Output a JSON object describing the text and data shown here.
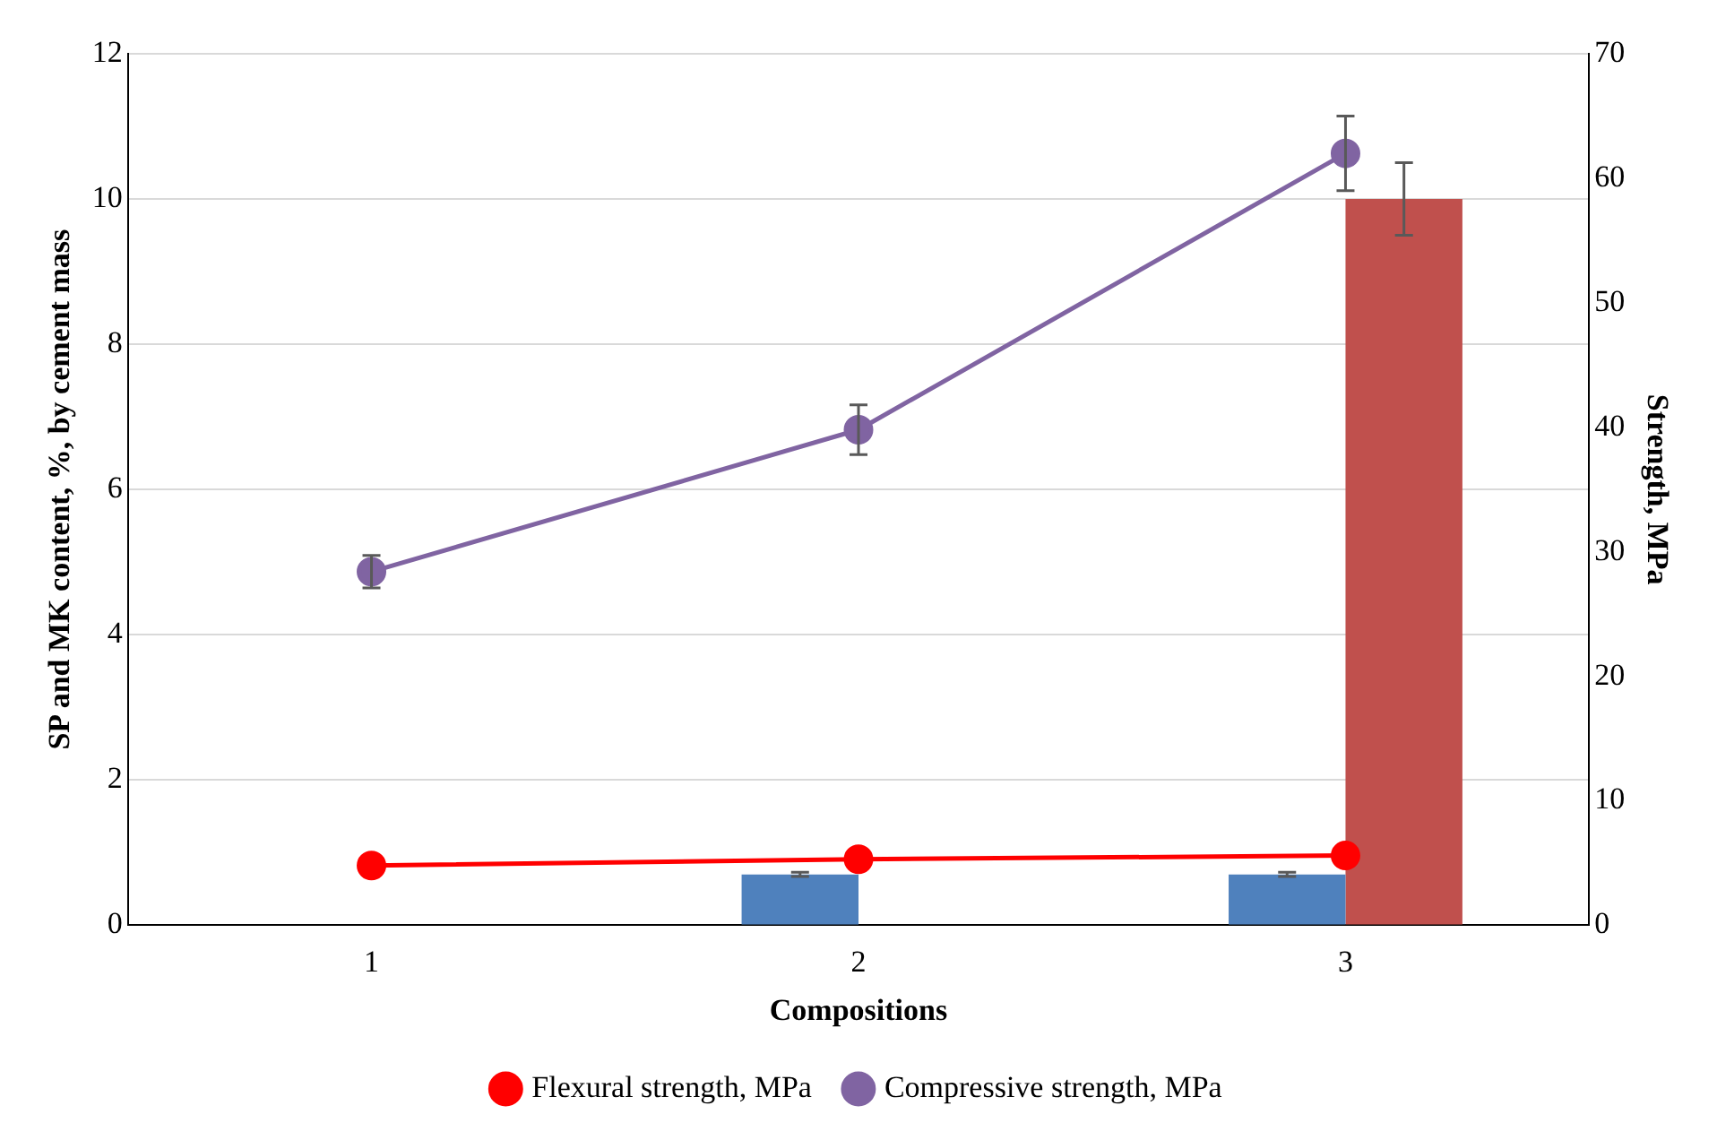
{
  "chart_data": {
    "type": "bar",
    "xlabel": "Compositions",
    "ylabel": "SP and MK content, %, by cement mass",
    "y2label": "Strength, MPa",
    "categories": [
      "1",
      "2",
      "3"
    ],
    "series": [
      {
        "color": "#4f81bd",
        "values": [
          0,
          0.7,
          0.7
        ],
        "errors": [
          null,
          0.03,
          0.03
        ]
      },
      {
        "color": "#c0504d",
        "values": [
          0,
          0,
          10
        ],
        "errors": [
          null,
          null,
          0.5
        ]
      },
      {
        "type": "line",
        "name": "Flexural strength, MPa",
        "color": "#ff0000",
        "axis": "y2",
        "values": [
          4.8,
          5.3,
          5.6
        ]
      },
      {
        "type": "line",
        "name": "Compressive strength, MPa",
        "color": "#8064a2",
        "axis": "y2",
        "values": [
          28.4,
          39.8,
          62.0
        ],
        "errors": [
          1.3,
          2,
          3
        ]
      }
    ],
    "ylim": [
      0,
      12
    ],
    "yticks": [
      0,
      2,
      4,
      6,
      8,
      10,
      12
    ],
    "y2lim": [
      0,
      70
    ],
    "y2ticks": [
      0,
      10,
      20,
      30,
      40,
      50,
      60,
      70
    ],
    "grid": "y",
    "legend": "bottom",
    "marker": "circle",
    "line_style": "solid"
  }
}
